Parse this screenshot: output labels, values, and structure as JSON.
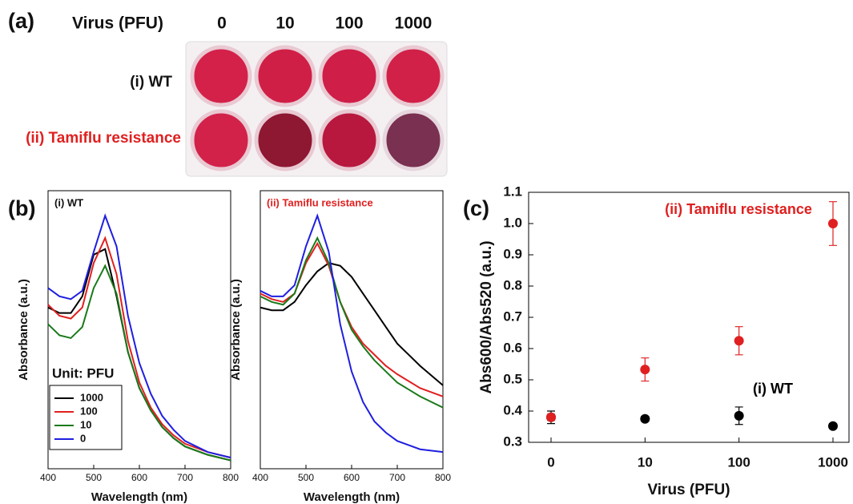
{
  "panel_labels": [
    "(a)",
    "(b)",
    "(c)"
  ],
  "panel_a": {
    "header": "Virus (PFU)",
    "columns": [
      "0",
      "10",
      "100",
      "1000"
    ],
    "rows": [
      "(i) WT",
      "(ii) Tamiflu resistance"
    ]
  },
  "chart_data": [
    {
      "type": "line",
      "title": "(i) WT",
      "x_label": "Wavelength (nm)",
      "y_label": "Absorbance (a.u.)",
      "legend_title": "Unit: PFU",
      "x": [
        400,
        425,
        450,
        475,
        500,
        525,
        550,
        575,
        600,
        625,
        650,
        675,
        700,
        750,
        800
      ],
      "xlim": [
        400,
        800
      ],
      "xticks": [
        400,
        500,
        600,
        700,
        800
      ],
      "ylim": [
        0,
        1
      ],
      "series": [
        {
          "name": "1000",
          "color": "#000000",
          "values": [
            0.58,
            0.56,
            0.56,
            0.62,
            0.77,
            0.79,
            0.62,
            0.42,
            0.29,
            0.21,
            0.15,
            0.11,
            0.08,
            0.05,
            0.03
          ]
        },
        {
          "name": "100",
          "color": "#e02020",
          "values": [
            0.59,
            0.55,
            0.54,
            0.58,
            0.74,
            0.83,
            0.7,
            0.46,
            0.31,
            0.22,
            0.16,
            0.12,
            0.09,
            0.06,
            0.04
          ]
        },
        {
          "name": "10",
          "color": "#1a7a1a",
          "values": [
            0.52,
            0.48,
            0.47,
            0.51,
            0.65,
            0.73,
            0.63,
            0.42,
            0.29,
            0.21,
            0.15,
            0.11,
            0.08,
            0.05,
            0.03
          ]
        },
        {
          "name": "0",
          "color": "#1f1fe0",
          "values": [
            0.65,
            0.62,
            0.61,
            0.64,
            0.78,
            0.91,
            0.8,
            0.55,
            0.38,
            0.27,
            0.19,
            0.14,
            0.1,
            0.06,
            0.04
          ]
        }
      ]
    },
    {
      "type": "line",
      "title": "(ii) Tamiflu resistance",
      "title_color": "#e02020",
      "x_label": "Wavelength (nm)",
      "y_label": "Absorbance (a.u.)",
      "x": [
        400,
        425,
        450,
        475,
        500,
        525,
        550,
        575,
        600,
        625,
        650,
        675,
        700,
        750,
        800
      ],
      "xlim": [
        400,
        800
      ],
      "xticks": [
        400,
        500,
        600,
        700,
        800
      ],
      "ylim": [
        0,
        1
      ],
      "series": [
        {
          "name": "1000",
          "color": "#000000",
          "values": [
            0.58,
            0.57,
            0.57,
            0.6,
            0.66,
            0.71,
            0.74,
            0.73,
            0.69,
            0.63,
            0.57,
            0.51,
            0.45,
            0.37,
            0.3
          ]
        },
        {
          "name": "100",
          "color": "#e02020",
          "values": [
            0.63,
            0.61,
            0.6,
            0.63,
            0.74,
            0.81,
            0.73,
            0.6,
            0.51,
            0.45,
            0.41,
            0.37,
            0.34,
            0.29,
            0.26
          ]
        },
        {
          "name": "10",
          "color": "#1a7a1a",
          "values": [
            0.62,
            0.6,
            0.59,
            0.63,
            0.75,
            0.83,
            0.74,
            0.6,
            0.5,
            0.44,
            0.39,
            0.35,
            0.31,
            0.26,
            0.22
          ]
        },
        {
          "name": "0",
          "color": "#1f1fe0",
          "values": [
            0.64,
            0.62,
            0.62,
            0.66,
            0.8,
            0.91,
            0.78,
            0.52,
            0.35,
            0.24,
            0.17,
            0.13,
            0.1,
            0.07,
            0.06
          ]
        }
      ]
    },
    {
      "type": "scatter",
      "x_label": "Virus (PFU)",
      "y_label": "Abs600/Abs520 (a.u.)",
      "categories": [
        "0",
        "10",
        "100",
        "1000"
      ],
      "ylim": [
        0.3,
        1.1
      ],
      "yticks": [
        0.3,
        0.4,
        0.5,
        0.6,
        0.7,
        0.8,
        0.9,
        {
          "value": 1,
          "label": "1.0"
        },
        1.1
      ],
      "annotations": [
        {
          "text": "(ii) Tamiflu resistance",
          "color": "#e02020"
        },
        {
          "text": "(i) WT",
          "color": "#000000"
        }
      ],
      "series": [
        {
          "name": "(i) WT",
          "color": "#000000",
          "values": [
            0.38,
            0.375,
            0.385,
            0.352
          ],
          "errors": [
            0.02,
            0.008,
            0.028,
            0.008
          ]
        },
        {
          "name": "(ii) Tamiflu resistance",
          "color": "#e02020",
          "values": [
            0.38,
            0.533,
            0.625,
            1.0
          ],
          "errors": [
            0.01,
            0.037,
            0.045,
            0.07
          ]
        }
      ]
    }
  ]
}
